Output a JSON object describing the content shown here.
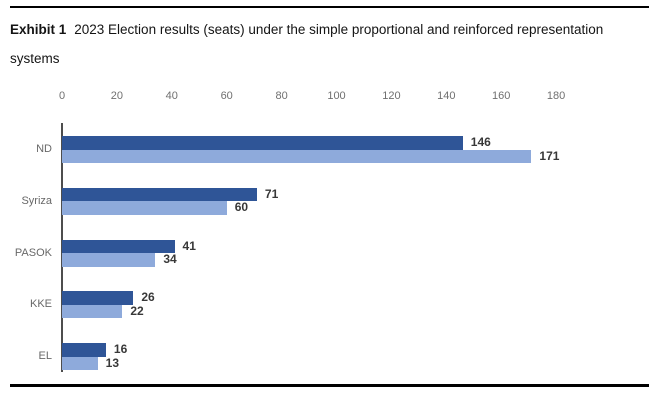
{
  "exhibit": {
    "label": "Exhibit 1",
    "title_line1": "2023 Election results (seats) under the simple proportional and reinforced representation",
    "title_line2": "systems"
  },
  "chart_data": {
    "type": "bar",
    "orientation": "horizontal",
    "title": "2023 Election results (seats) under the simple proportional and reinforced representation systems",
    "categories": [
      "ND",
      "Syriza",
      "PASOK",
      "KKE",
      "EL"
    ],
    "series": [
      {
        "key": "simple-proportional",
        "name": "Simple proportional",
        "color": "#2F5597",
        "values": [
          146,
          71,
          41,
          26,
          16
        ]
      },
      {
        "key": "reinforced-representation",
        "name": "Reinforced representation",
        "color": "#8EAADB",
        "values": [
          171,
          60,
          34,
          22,
          13
        ]
      }
    ],
    "xlim": [
      0,
      180
    ],
    "x_ticks": [
      0,
      20,
      40,
      60,
      80,
      100,
      120,
      140,
      160,
      180
    ],
    "axis_position": "top",
    "grid": false,
    "legend": "none",
    "value_labels": true
  },
  "colors": {
    "bar_dark": "#2F5597",
    "bar_light": "#8EAADB",
    "value_label": "#383838",
    "axis_label": "#6F6F6F",
    "axis_line": "#4D4D4D",
    "rule": "#000000"
  }
}
